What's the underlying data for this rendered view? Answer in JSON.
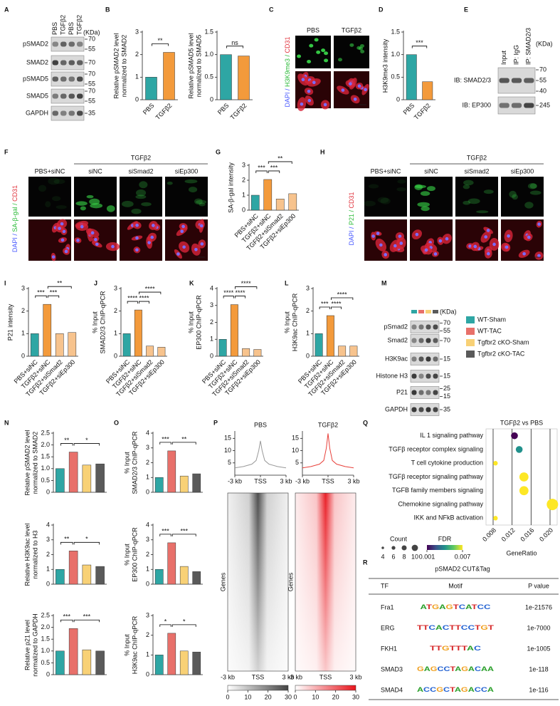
{
  "panel_letters": [
    "A",
    "B",
    "C",
    "D",
    "E",
    "F",
    "G",
    "H",
    "I",
    "J",
    "K",
    "L",
    "M",
    "N",
    "O",
    "P",
    "Q",
    "R"
  ],
  "blot_A": {
    "lanes": [
      "PBS",
      "TGFβ2",
      "PBS",
      "TGFβ2"
    ],
    "unit": "(KDa)",
    "rows": [
      {
        "label": "pSMAD2",
        "markers": [
          "70",
          "55"
        ]
      },
      {
        "label": "SMAD2",
        "markers": [
          "70"
        ]
      },
      {
        "label": "pSMAD5",
        "markers": [
          "70",
          "55"
        ]
      },
      {
        "label": "SMAD5",
        "markers": [
          "70",
          "55"
        ]
      },
      {
        "label": "GAPDH",
        "markers": [
          "35"
        ]
      }
    ]
  },
  "image_C": {
    "columns": [
      "PBS",
      "TGFβ2"
    ],
    "channels": [
      "DAPI / ",
      "H3K9me3 / ",
      "CD31"
    ]
  },
  "blot_E": {
    "lanes": [
      "Input",
      "IP: IgG",
      "IP: SMAD2/3"
    ],
    "unit": "(KDa)",
    "rows": [
      {
        "label": "IB: SMAD2/3",
        "markers": [
          "70",
          "55",
          "40"
        ]
      },
      {
        "label": "IB: EP300",
        "markers": [
          "245"
        ]
      }
    ]
  },
  "image_F": {
    "group": "TGFβ2",
    "columns": [
      "PBS+siNC",
      "siNC",
      "siSmad2",
      "siEp300"
    ],
    "channels": [
      "DAPI / ",
      "SA-β-gal / ",
      "CD31"
    ]
  },
  "image_H": {
    "group": "TGFβ2",
    "columns": [
      "PBS+siNC",
      "siNC",
      "siSmad2",
      "siEp300"
    ],
    "channels": [
      "DAPI / ",
      "P21 / ",
      "CD31"
    ]
  },
  "blot_M": {
    "unit": "(KDa)",
    "rows": [
      {
        "label": "pSmad2",
        "markers": [
          "70",
          "55"
        ]
      },
      {
        "label": "Smad2",
        "markers": [
          "70"
        ]
      },
      {
        "label": "H3K9ac",
        "markers": [
          "15"
        ]
      },
      {
        "label": "Histone H3",
        "markers": [
          "15"
        ]
      },
      {
        "label": "P21",
        "markers": [
          "25",
          "15"
        ]
      },
      {
        "label": "GAPDH",
        "markers": [
          "35"
        ]
      }
    ],
    "legend": [
      {
        "name": "WT-Sham",
        "color": "#2ea6a4"
      },
      {
        "name": "WT-TAC",
        "color": "#e8706a"
      },
      {
        "name": "Tgfbr2 cKO-Sham",
        "color": "#f8d176"
      },
      {
        "name": "Tgfbr2 cKO-TAC",
        "color": "#5a5a5a"
      }
    ]
  },
  "heatmaps_P": [
    {
      "ylabel": "Genes",
      "xlabels": [
        "-3 kb",
        "TSS",
        "3 kb"
      ],
      "color": "#444444",
      "colorbar_ticks": [
        0,
        10,
        20,
        30
      ]
    },
    {
      "ylabel": "Genes",
      "xlabels": [
        "-3 kb",
        "TSS",
        "3 kb"
      ],
      "color": "#e8141c",
      "colorbar_ticks": [
        0,
        10,
        20,
        30
      ]
    }
  ],
  "table_R": {
    "title": "pSMAD2 CUT&Tag",
    "columns": [
      "TF",
      "Motif",
      "P value"
    ],
    "rows": [
      [
        "Fra1",
        "ATGAGTCATCC",
        "1e-21576"
      ],
      [
        "ERG",
        "TTCACTTCCTGT",
        "1e-7000"
      ],
      [
        "FKH1",
        "TTGTTTAC",
        "1e-1005"
      ],
      [
        "SMAD3",
        "GAGCCTAGACAA",
        "1e-118"
      ],
      [
        "SMAD4",
        "ACCGCTAGACCA",
        "1e-116"
      ]
    ]
  },
  "chart_data": [
    {
      "type": "bar",
      "ylabel": [
        "Relative pSMAD2 level",
        "normalized to SMAD2"
      ],
      "categories": [
        "PBS",
        "TGFβ2"
      ],
      "values": [
        1.0,
        2.1
      ],
      "colors": [
        "#2ea6a4",
        "#f39a3b"
      ],
      "ylim": [
        0,
        3
      ],
      "yticks": [
        0,
        1,
        2,
        3
      ],
      "significance": [
        "**"
      ]
    },
    {
      "type": "bar",
      "ylabel": [
        "Relative pSMAD5 level",
        "normalized to SMAD5"
      ],
      "categories": [
        "PBS",
        "TGFβ2"
      ],
      "values": [
        1.0,
        0.97
      ],
      "colors": [
        "#2ea6a4",
        "#f39a3b"
      ],
      "ylim": [
        0,
        1.5
      ],
      "yticks": [
        0,
        0.5,
        {
          "value": 1,
          "label": "1.0"
        },
        1.5
      ],
      "significance": [
        "ns"
      ]
    },
    {
      "type": "bar",
      "ylabel": [
        "H3K9me3 intensity"
      ],
      "categories": [
        "PBS",
        "TGFβ2"
      ],
      "values": [
        1.0,
        0.4
      ],
      "colors": [
        "#2ea6a4",
        "#f39a3b"
      ],
      "ylim": [
        0,
        1.5
      ],
      "yticks": [
        0,
        0.5,
        {
          "value": 1,
          "label": "1.0"
        },
        1.5
      ],
      "significance": [
        "***"
      ]
    },
    {
      "type": "bar",
      "ylabel": [
        "SA-β-gal intensity"
      ],
      "categories": [
        "PBS+siNC",
        "TGFβ2+siNC",
        "TGFβ2+siSmad2",
        "TGFβ2+siEp300"
      ],
      "values": [
        1.0,
        2.05,
        0.75,
        1.1
      ],
      "colors": [
        "#2ea6a4",
        "#f39a3b",
        "#f7c38d",
        "#f7c38d"
      ],
      "ylim": [
        0,
        3
      ],
      "yticks": [
        0,
        1,
        2,
        3
      ],
      "significance": [
        "***",
        "***",
        "**"
      ]
    },
    {
      "type": "bar",
      "ylabel": [
        "P21 intensity"
      ],
      "categories": [
        "PBS+siNC",
        "TGFβ2+siNC",
        "TGFβ2+siSmad2",
        "TGFβ2+siEp300"
      ],
      "values": [
        1.0,
        2.3,
        1.0,
        1.05
      ],
      "colors": [
        "#2ea6a4",
        "#f39a3b",
        "#f7c38d",
        "#f7c38d"
      ],
      "ylim": [
        0,
        3
      ],
      "yticks": [
        0,
        1,
        2,
        3
      ],
      "significance": [
        "***",
        "***",
        "**"
      ]
    },
    {
      "type": "bar",
      "ylabel": [
        "% Input",
        "SMAD2/3 ChIP-qPCR"
      ],
      "categories": [
        "PBS+siNC",
        "TGFβ2+siNC",
        "TGFβ2+siSmad2",
        "TGFβ2+siEp300"
      ],
      "values": [
        1.0,
        2.05,
        0.45,
        0.4
      ],
      "colors": [
        "#2ea6a4",
        "#f39a3b",
        "#f7c38d",
        "#f7c38d"
      ],
      "ylim": [
        0,
        3
      ],
      "yticks": [
        0,
        1,
        2,
        3
      ],
      "significance": [
        "****",
        "****",
        "****"
      ]
    },
    {
      "type": "bar",
      "ylabel": [
        "% Input",
        "EP300 ChIP-qPCR"
      ],
      "categories": [
        "PBS+siNC",
        "TGFβ2+siNC",
        "TGFβ2+siSmad2",
        "TGFβ2+siEp300"
      ],
      "values": [
        1.0,
        3.05,
        0.45,
        0.4
      ],
      "colors": [
        "#2ea6a4",
        "#f39a3b",
        "#f7c38d",
        "#f7c38d"
      ],
      "ylim": [
        0,
        4
      ],
      "yticks": [
        0,
        1,
        2,
        3,
        4
      ],
      "significance": [
        "****",
        "****",
        "****"
      ]
    },
    {
      "type": "bar",
      "ylabel": [
        "% Input",
        "H3K9ac ChIP-qPCR"
      ],
      "categories": [
        "PBS+siNC",
        "TGFβ2+siNC",
        "TGFβ2+siSmad2",
        "TGFβ2+siEp300"
      ],
      "values": [
        1.0,
        1.8,
        0.45,
        0.45
      ],
      "colors": [
        "#2ea6a4",
        "#f39a3b",
        "#f7c38d",
        "#f7c38d"
      ],
      "ylim": [
        0,
        3
      ],
      "yticks": [
        0,
        1,
        2,
        3
      ],
      "significance": [
        "***",
        "****",
        "****"
      ]
    },
    {
      "type": "bar",
      "ylabel": [
        "Relative pSMAD2 level",
        "normalized to SMAD2"
      ],
      "categories": [
        null,
        null,
        null,
        null
      ],
      "values": [
        1.0,
        1.7,
        1.15,
        1.2
      ],
      "colors": [
        "#2ea6a4",
        "#e8706a",
        "#f8d176",
        "#5a5a5a"
      ],
      "ylim": [
        0,
        2.5
      ],
      "yticks": [
        0,
        0.5,
        {
          "value": 1,
          "label": "1.0"
        },
        1.5,
        {
          "value": 2,
          "label": "2.0"
        },
        2.5
      ],
      "significance": [
        "**",
        "*"
      ]
    },
    {
      "type": "bar",
      "ylabel": [
        "Relative H3K9ac level",
        "normalized to H3"
      ],
      "categories": [
        null,
        null,
        null,
        null
      ],
      "values": [
        1.0,
        2.25,
        1.3,
        1.2
      ],
      "colors": [
        "#2ea6a4",
        "#e8706a",
        "#f8d176",
        "#5a5a5a"
      ],
      "ylim": [
        0,
        4
      ],
      "yticks": [
        0,
        1,
        2,
        3,
        4
      ],
      "significance": [
        "**",
        "*"
      ]
    },
    {
      "type": "bar",
      "ylabel": [
        "Relative p21 level",
        "normalized to GAPDH"
      ],
      "categories": [
        null,
        null,
        null,
        null
      ],
      "values": [
        1.0,
        1.95,
        1.05,
        1.0
      ],
      "colors": [
        "#2ea6a4",
        "#e8706a",
        "#f8d176",
        "#5a5a5a"
      ],
      "ylim": [
        0,
        2.5
      ],
      "yticks": [
        0,
        0.5,
        {
          "value": 1,
          "label": "1.0"
        },
        1.5,
        {
          "value": 2,
          "label": "2.0"
        },
        2.5
      ],
      "significance": [
        "***",
        "***"
      ]
    },
    {
      "type": "bar",
      "ylabel": [
        "% Input",
        "SMAD2/3 ChIP-qPCR"
      ],
      "categories": [
        null,
        null,
        null,
        null
      ],
      "values": [
        1.0,
        2.8,
        1.1,
        1.25
      ],
      "colors": [
        "#2ea6a4",
        "#e8706a",
        "#f8d176",
        "#5a5a5a"
      ],
      "ylim": [
        0,
        4
      ],
      "yticks": [
        0,
        1,
        2,
        3,
        4
      ],
      "significance": [
        "***",
        "**"
      ]
    },
    {
      "type": "bar",
      "ylabel": [
        "% Input",
        "EP300 ChIP-qPCR"
      ],
      "categories": [
        null,
        null,
        null,
        null
      ],
      "values": [
        1.0,
        2.8,
        1.2,
        0.85
      ],
      "colors": [
        "#2ea6a4",
        "#e8706a",
        "#f8d176",
        "#5a5a5a"
      ],
      "ylim": [
        0,
        4
      ],
      "yticks": [
        0,
        1,
        2,
        3,
        4
      ],
      "significance": [
        "***",
        "***"
      ]
    },
    {
      "type": "bar",
      "ylabel": [
        "% Input",
        "H3K9ac ChIP-qPCR"
      ],
      "categories": [
        null,
        null,
        null,
        null
      ],
      "values": [
        1.0,
        2.1,
        1.2,
        1.15
      ],
      "colors": [
        "#2ea6a4",
        "#e8706a",
        "#f8d176",
        "#5a5a5a"
      ],
      "ylim": [
        0,
        3
      ],
      "yticks": [
        0,
        1,
        2,
        3
      ],
      "significance": [
        "*",
        "*"
      ]
    },
    {
      "type": "line",
      "title": "PBS",
      "x": [
        -3,
        -2,
        -1,
        -0.5,
        -0.2,
        0,
        0.2,
        0.5,
        1,
        2,
        3
      ],
      "values": [
        3,
        3.5,
        4.5,
        6,
        10,
        14,
        10,
        6,
        4.5,
        3.5,
        3
      ],
      "color": "#999999",
      "xlim": [
        -3,
        3
      ],
      "xticks": [
        {
          "value": -3,
          "label": "-3 kb"
        },
        {
          "value": 0,
          "label": "TSS"
        },
        {
          "value": 3,
          "label": "3 kb"
        }
      ],
      "ylim": [
        0,
        18
      ],
      "yticks": [
        5,
        10,
        15
      ]
    },
    {
      "type": "line",
      "title": "TGFβ2",
      "x": [
        -3,
        -2,
        -1,
        -0.5,
        -0.2,
        0,
        0.2,
        0.5,
        1,
        2,
        3
      ],
      "values": [
        3,
        3.5,
        4.5,
        6,
        11,
        17,
        11,
        6,
        4.5,
        3.5,
        3
      ],
      "color": "#e8403a",
      "xlim": [
        -3,
        3
      ],
      "xticks": [
        {
          "value": -3,
          "label": "-3 kb"
        },
        {
          "value": 0,
          "label": "TSS"
        },
        {
          "value": 3,
          "label": "3 kb"
        }
      ],
      "ylim": [
        0,
        18
      ],
      "yticks": [
        5,
        10,
        15
      ]
    },
    {
      "type": "scatter",
      "title": "TGFβ2 vs PBS",
      "categories": [
        "IL 1 signaling pathway",
        "TGFβ receptor complex signaling",
        "T cell cytokine production",
        "TGFβ receptor signaling pathway",
        "TGFB family members signaling",
        "Chemokine signaling pathway",
        "IKK and NFkB activation"
      ],
      "x": [
        0.0125,
        0.0135,
        0.0085,
        0.0145,
        0.0145,
        0.0205,
        0.0085
      ],
      "sizes": [
        6,
        6,
        4,
        8,
        8,
        10,
        4
      ],
      "fdr": [
        0.001,
        0.004,
        0.007,
        0.007,
        0.007,
        0.007,
        0.007
      ],
      "xlabel": "GeneRatio",
      "xlim": [
        0.0065,
        0.0215
      ],
      "xticks": [
        0.008,
        0.012,
        0.016,
        {
          "value": 0.02,
          "label": "0.020"
        }
      ],
      "grid": true,
      "size_legend_title": "Count",
      "size_legend": [
        4,
        6,
        8,
        10
      ],
      "color_legend_title": "FDR",
      "color_legend": [
        0.001,
        0.007
      ]
    }
  ]
}
